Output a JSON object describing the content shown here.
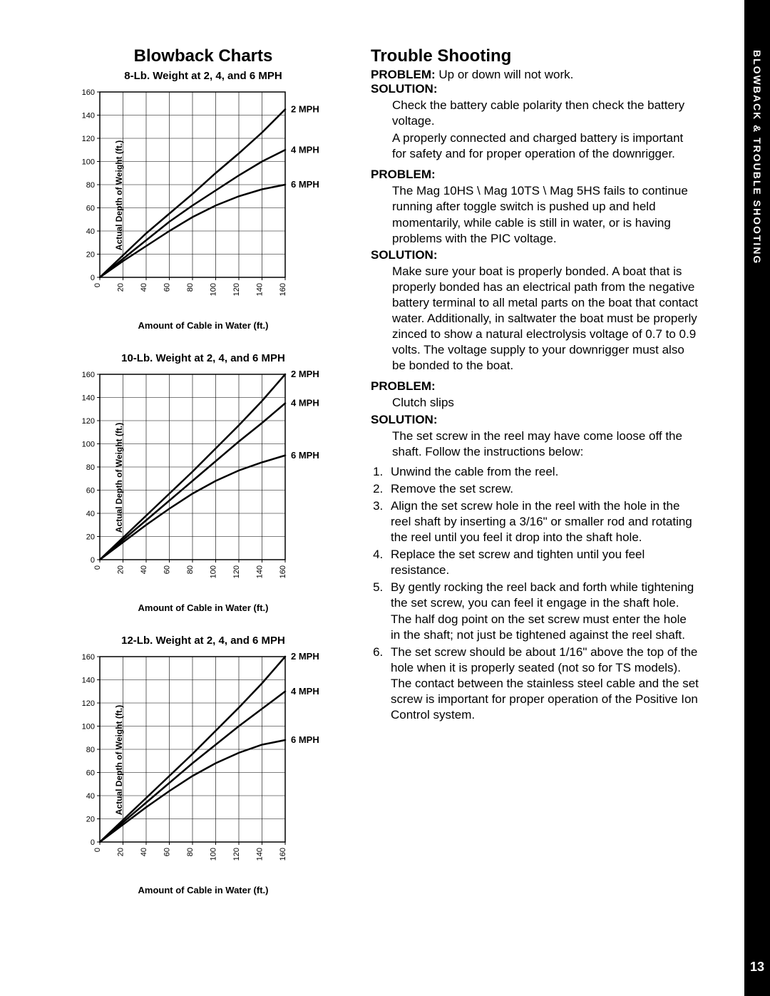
{
  "sideTab": {
    "label": "BLOWBACK & TROUBLE SHOOTING",
    "pageNumber": "13"
  },
  "charts": {
    "heading": "Blowback Charts",
    "xAxisLabel": "Amount of Cable in Water (ft.)",
    "yAxisLabel": "Actual Depth of Weight (ft.)",
    "xTicks": [
      0,
      20,
      40,
      60,
      80,
      100,
      120,
      140,
      160
    ],
    "yTicks": [
      0,
      20,
      40,
      60,
      80,
      100,
      120,
      140,
      160
    ],
    "xlim": [
      0,
      160
    ],
    "ylim": [
      0,
      160
    ],
    "gridColor": "#000000",
    "lineColor": "#000000",
    "lineWidth": 2.5,
    "tickFontSize": 11,
    "axisLabelFontSize": 12,
    "seriesLabelFontSize": 13,
    "seriesLabels": [
      "2 MPH",
      "4 MPH",
      "6 MPH"
    ],
    "items": [
      {
        "title": "8-Lb. Weight at 2, 4, and 6 MPH",
        "series": {
          "2 MPH": [
            [
              0,
              0
            ],
            [
              20,
              19
            ],
            [
              40,
              38
            ],
            [
              60,
              55
            ],
            [
              80,
              72
            ],
            [
              100,
              90
            ],
            [
              120,
              107
            ],
            [
              140,
              125
            ],
            [
              160,
              145
            ]
          ],
          "4 MPH": [
            [
              0,
              0
            ],
            [
              20,
              16
            ],
            [
              40,
              32
            ],
            [
              60,
              48
            ],
            [
              80,
              62
            ],
            [
              100,
              75
            ],
            [
              120,
              88
            ],
            [
              140,
              100
            ],
            [
              160,
              110
            ]
          ],
          "6 MPH": [
            [
              0,
              0
            ],
            [
              20,
              14
            ],
            [
              40,
              27
            ],
            [
              60,
              40
            ],
            [
              80,
              52
            ],
            [
              100,
              62
            ],
            [
              120,
              70
            ],
            [
              140,
              76
            ],
            [
              160,
              80
            ]
          ]
        },
        "labelY": {
          "2 MPH": 145,
          "4 MPH": 110,
          "6 MPH": 80
        }
      },
      {
        "title": "10-Lb. Weight at 2, 4, and 6 MPH",
        "series": {
          "2 MPH": [
            [
              0,
              0
            ],
            [
              20,
              19
            ],
            [
              40,
              38
            ],
            [
              60,
              57
            ],
            [
              80,
              76
            ],
            [
              100,
              96
            ],
            [
              120,
              116
            ],
            [
              140,
              137
            ],
            [
              160,
              160
            ]
          ],
          "4 MPH": [
            [
              0,
              0
            ],
            [
              20,
              17
            ],
            [
              40,
              34
            ],
            [
              60,
              51
            ],
            [
              80,
              68
            ],
            [
              100,
              85
            ],
            [
              120,
              102
            ],
            [
              140,
              118
            ],
            [
              160,
              135
            ]
          ],
          "6 MPH": [
            [
              0,
              0
            ],
            [
              20,
              15
            ],
            [
              40,
              30
            ],
            [
              60,
              44
            ],
            [
              80,
              57
            ],
            [
              100,
              68
            ],
            [
              120,
              77
            ],
            [
              140,
              84
            ],
            [
              160,
              90
            ]
          ]
        },
        "labelY": {
          "2 MPH": 160,
          "4 MPH": 135,
          "6 MPH": 90
        }
      },
      {
        "title": "12-Lb. Weight at 2, 4, and 6 MPH",
        "series": {
          "2 MPH": [
            [
              0,
              0
            ],
            [
              20,
              19
            ],
            [
              40,
              38
            ],
            [
              60,
              57
            ],
            [
              80,
              76
            ],
            [
              100,
              96
            ],
            [
              120,
              116
            ],
            [
              140,
              137
            ],
            [
              160,
              160
            ]
          ],
          "4 MPH": [
            [
              0,
              0
            ],
            [
              20,
              17
            ],
            [
              40,
              34
            ],
            [
              60,
              51
            ],
            [
              80,
              68
            ],
            [
              100,
              84
            ],
            [
              120,
              100
            ],
            [
              140,
              115
            ],
            [
              160,
              130
            ]
          ],
          "6 MPH": [
            [
              0,
              0
            ],
            [
              20,
              15
            ],
            [
              40,
              30
            ],
            [
              60,
              44
            ],
            [
              80,
              57
            ],
            [
              100,
              68
            ],
            [
              120,
              77
            ],
            [
              140,
              84
            ],
            [
              160,
              88
            ]
          ]
        },
        "labelY": {
          "2 MPH": 160,
          "4 MPH": 130,
          "6 MPH": 88
        }
      }
    ]
  },
  "troubleShooting": {
    "heading": "Trouble Shooting",
    "labels": {
      "problem": "PROBLEM:",
      "solution": "SOLUTION:"
    },
    "sections": [
      {
        "problemInline": " Up or down will not work.",
        "solutionParas": [
          "Check the battery cable polarity then check the battery voltage.",
          "A properly connected and charged battery is important for safety and for proper operation of the downrigger."
        ]
      },
      {
        "problemParas": [
          "The Mag 10HS \\ Mag 10TS \\ Mag 5HS fails to continue running after toggle switch is pushed up and held momentarily, while cable is still in water, or is having problems with the PIC voltage."
        ],
        "solutionParas": [
          "Make sure your boat is properly bonded. A boat that is properly bonded has an electrical path from the negative battery terminal to all metal parts on the boat that contact water. Additionally, in saltwater the boat must be properly zinced to show a natural electrolysis voltage of 0.7 to 0.9 volts. The voltage supply to your downrigger must also be bonded to the boat."
        ]
      },
      {
        "problemParas": [
          "Clutch slips"
        ],
        "solutionParas": [
          "The set screw in the reel may have come loose off the shaft. Follow the instructions below:"
        ],
        "orderedList": [
          "Unwind the cable from the reel.",
          "Remove the set screw.",
          "Align the set screw hole in the reel with the hole in the reel shaft by inserting a 3/16\" or smaller rod and rotating the reel until you feel it drop into the shaft hole.",
          "Replace the set screw and tighten until you feel resistance.",
          "By gently rocking the reel back and forth while tightening the set screw, you can feel it engage in the shaft hole. The half dog point on the set screw must enter the hole in the shaft; not just be tightened against the reel shaft.",
          "The set screw should be about 1/16\" above the top of the hole when it is properly seated (not so for TS models). The contact between the stainless steel cable and the set screw is important for proper operation of the Positive Ion Control system."
        ]
      }
    ]
  }
}
